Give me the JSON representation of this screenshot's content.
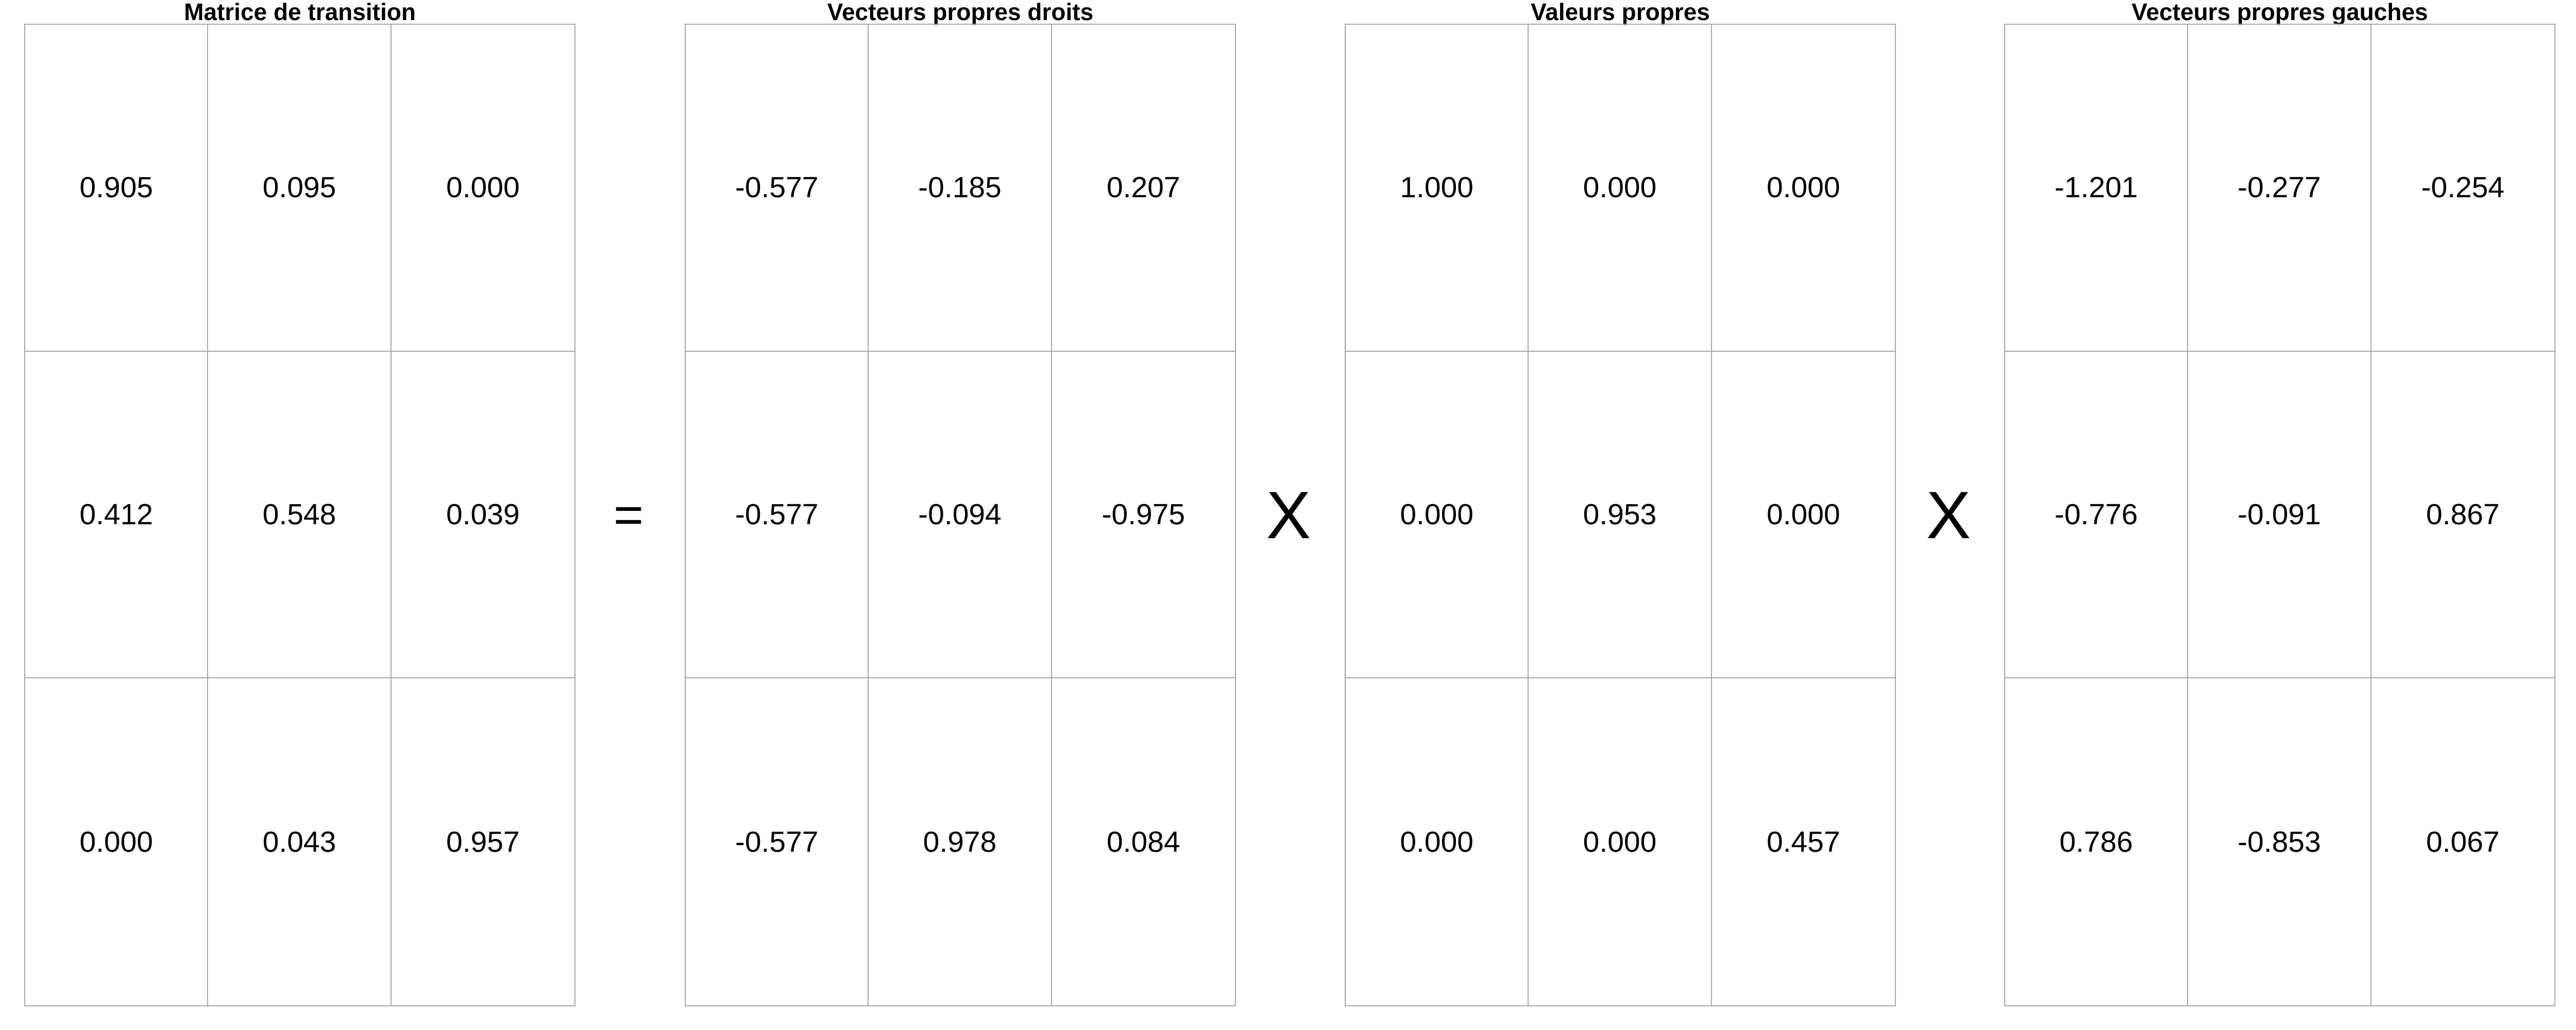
{
  "panels": [
    {
      "title": "Matrice de transition",
      "rows": [
        [
          "0.905",
          "0.095",
          "0.000"
        ],
        [
          "0.412",
          "0.548",
          "0.039"
        ],
        [
          "0.000",
          "0.043",
          "0.957"
        ]
      ]
    },
    {
      "title": "Vecteurs propres droits",
      "rows": [
        [
          "-0.577",
          "-0.185",
          "0.207"
        ],
        [
          "-0.577",
          "-0.094",
          "-0.975"
        ],
        [
          "-0.577",
          "0.978",
          "0.084"
        ]
      ]
    },
    {
      "title": "Valeurs propres",
      "rows": [
        [
          "1.000",
          "0.000",
          "0.000"
        ],
        [
          "0.000",
          "0.953",
          "0.000"
        ],
        [
          "0.000",
          "0.000",
          "0.457"
        ]
      ]
    },
    {
      "title": "Vecteurs propres gauches",
      "rows": [
        [
          "-1.201",
          "-0.277",
          "-0.254"
        ],
        [
          "-0.776",
          "-0.091",
          "0.867"
        ],
        [
          "0.786",
          "-0.853",
          "0.067"
        ]
      ]
    }
  ],
  "operators": {
    "equals": "=",
    "times_1": "X",
    "times_2": "X"
  }
}
